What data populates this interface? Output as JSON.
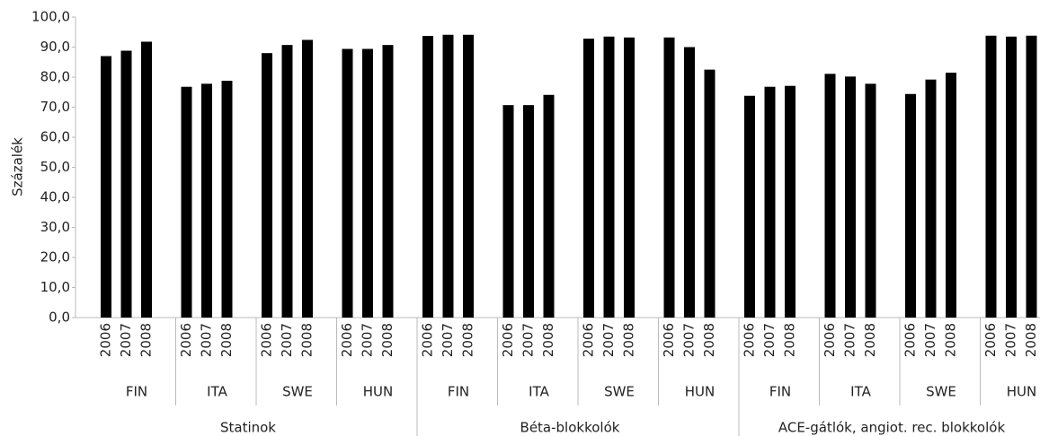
{
  "chart_data": {
    "type": "bar",
    "y_label": "Százalék",
    "color": "#000000",
    "ylim": [
      0,
      100
    ],
    "yticks": [
      {
        "value": 0,
        "label": "0,0"
      },
      {
        "value": 10,
        "label": "10,0"
      },
      {
        "value": 20,
        "label": "20,0"
      },
      {
        "value": 30,
        "label": "30,0"
      },
      {
        "value": 40,
        "label": "40,0"
      },
      {
        "value": 50,
        "label": "50,0"
      },
      {
        "value": 60,
        "label": "60,0"
      },
      {
        "value": 70,
        "label": "70,0"
      },
      {
        "value": 80,
        "label": "80,0"
      },
      {
        "value": 90,
        "label": "90,0"
      },
      {
        "value": 100,
        "label": "100,0"
      }
    ],
    "groups": [
      {
        "name": "Statinok",
        "subgroups": [
          {
            "name": "FIN",
            "categories": [
              "2006",
              "2007",
              "2008"
            ],
            "values": [
              87.0,
              88.8,
              91.8
            ]
          },
          {
            "name": "ITA",
            "categories": [
              "2006",
              "2007",
              "2008"
            ],
            "values": [
              76.8,
              77.8,
              78.8
            ]
          },
          {
            "name": "SWE",
            "categories": [
              "2006",
              "2007",
              "2008"
            ],
            "values": [
              88.0,
              90.7,
              92.4
            ]
          },
          {
            "name": "HUN",
            "categories": [
              "2006",
              "2007",
              "2008"
            ],
            "values": [
              89.4,
              89.4,
              90.7
            ]
          }
        ]
      },
      {
        "name": "Béta-blokkolók",
        "subgroups": [
          {
            "name": "FIN",
            "categories": [
              "2006",
              "2007",
              "2008"
            ],
            "values": [
              93.7,
              94.1,
              94.1
            ]
          },
          {
            "name": "ITA",
            "categories": [
              "2006",
              "2007",
              "2008"
            ],
            "values": [
              70.7,
              70.7,
              74.1
            ]
          },
          {
            "name": "SWE",
            "categories": [
              "2006",
              "2007",
              "2008"
            ],
            "values": [
              92.8,
              93.5,
              93.2
            ]
          },
          {
            "name": "HUN",
            "categories": [
              "2006",
              "2007",
              "2008"
            ],
            "values": [
              93.2,
              90.0,
              82.5
            ]
          }
        ]
      },
      {
        "name": "ACE-gátlók, angiot. rec. blokkolók",
        "subgroups": [
          {
            "name": "FIN",
            "categories": [
              "2006",
              "2007",
              "2008"
            ],
            "values": [
              73.8,
              76.8,
              77.1
            ]
          },
          {
            "name": "ITA",
            "categories": [
              "2006",
              "2007",
              "2008"
            ],
            "values": [
              81.1,
              80.2,
              77.8
            ]
          },
          {
            "name": "SWE",
            "categories": [
              "2006",
              "2007",
              "2008"
            ],
            "values": [
              74.4,
              79.2,
              81.5
            ]
          },
          {
            "name": "HUN",
            "categories": [
              "2006",
              "2007",
              "2008"
            ],
            "values": [
              93.8,
              93.5,
              93.8
            ]
          }
        ]
      }
    ]
  }
}
